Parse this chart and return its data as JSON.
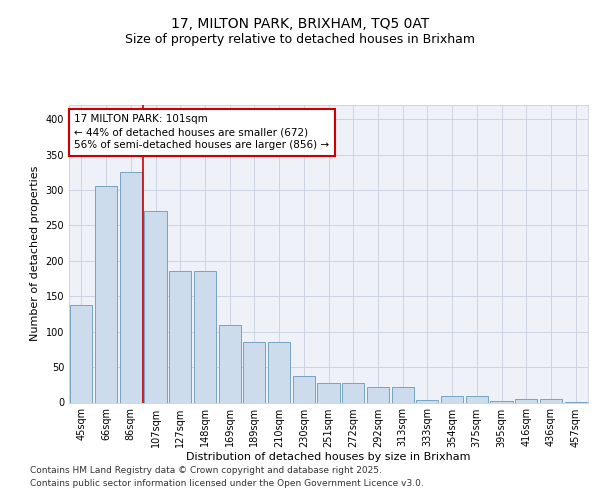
{
  "title_line1": "17, MILTON PARK, BRIXHAM, TQ5 0AT",
  "title_line2": "Size of property relative to detached houses in Brixham",
  "xlabel": "Distribution of detached houses by size in Brixham",
  "ylabel": "Number of detached properties",
  "categories": [
    "45sqm",
    "66sqm",
    "86sqm",
    "107sqm",
    "127sqm",
    "148sqm",
    "169sqm",
    "189sqm",
    "210sqm",
    "230sqm",
    "251sqm",
    "272sqm",
    "292sqm",
    "313sqm",
    "333sqm",
    "354sqm",
    "375sqm",
    "395sqm",
    "416sqm",
    "436sqm",
    "457sqm"
  ],
  "values": [
    137,
    305,
    325,
    270,
    185,
    185,
    109,
    85,
    85,
    38,
    28,
    28,
    22,
    22,
    3,
    9,
    9,
    2,
    5,
    5,
    1
  ],
  "bar_color": "#ccdcec",
  "bar_edge_color": "#6699bb",
  "background_color": "#eef2f8",
  "grid_color": "#c8d0de",
  "annotation_line1": "17 MILTON PARK: 101sqm",
  "annotation_line2": "← 44% of detached houses are smaller (672)",
  "annotation_line3": "56% of semi-detached houses are larger (856) →",
  "annotation_box_edge_color": "#cc0000",
  "vline_color": "#cc0000",
  "vline_x": 2.5,
  "ylim": [
    0,
    420
  ],
  "yticks": [
    0,
    50,
    100,
    150,
    200,
    250,
    300,
    350,
    400
  ],
  "footer_text": "Contains HM Land Registry data © Crown copyright and database right 2025.\nContains public sector information licensed under the Open Government Licence v3.0.",
  "title_fontsize": 10,
  "subtitle_fontsize": 9,
  "axis_label_fontsize": 8,
  "tick_fontsize": 7,
  "annotation_fontsize": 7.5,
  "footer_fontsize": 6.5
}
